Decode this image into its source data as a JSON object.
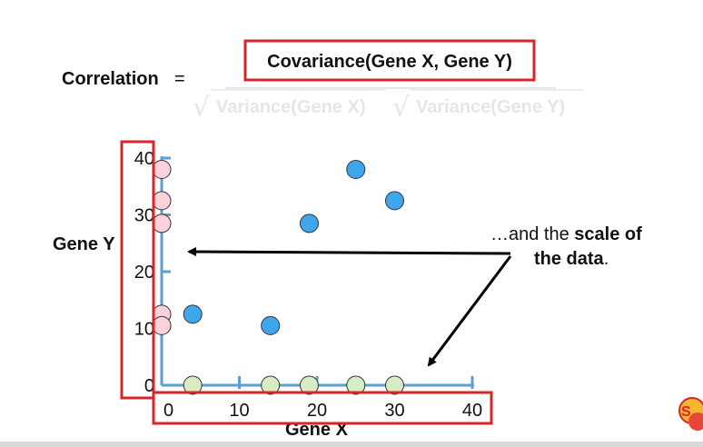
{
  "formula": {
    "lhs": "Correlation",
    "equals": "=",
    "numerator": "Covariance(Gene X, Gene Y)",
    "denominator_left": "Variance(Gene X)",
    "denominator_right": "Variance(Gene Y)",
    "sqrt_symbol": "√"
  },
  "annotation": {
    "prefix": "…and the ",
    "bold": "scale of",
    "line2_bold": "the data",
    "line2_end": "."
  },
  "colors": {
    "axis": "#5a9fd4",
    "highlight_box": "#d62728",
    "point_blue": "#3ea6ec",
    "point_pink": "#f9d2dc",
    "point_green": "#d8ecc4",
    "arrow": "#000000",
    "faded_text": "#e6e6e6"
  },
  "logo_icon": "statquest-logo-icon",
  "chart_data": {
    "type": "scatter",
    "xlabel": "Gene X",
    "ylabel": "Gene Y",
    "xlim": [
      0,
      40
    ],
    "ylim": [
      0,
      40
    ],
    "x_ticks": [
      0,
      10,
      20,
      30,
      40
    ],
    "y_ticks": [
      0,
      10,
      20,
      30,
      40
    ],
    "grid": false,
    "series": [
      {
        "role": "data",
        "color": "#3ea6ec",
        "points": [
          [
            4,
            12.5
          ],
          [
            14,
            10.5
          ],
          [
            19,
            28.5
          ],
          [
            25,
            38
          ],
          [
            30,
            32.5
          ]
        ]
      },
      {
        "role": "y-projection",
        "color": "#f9d2dc",
        "points": [
          [
            0,
            12.5
          ],
          [
            0,
            10.5
          ],
          [
            0,
            28.5
          ],
          [
            0,
            38
          ],
          [
            0,
            32.5
          ]
        ]
      },
      {
        "role": "x-projection",
        "color": "#d8ecc4",
        "points": [
          [
            4,
            0
          ],
          [
            14,
            0
          ],
          [
            19,
            0
          ],
          [
            25,
            0
          ],
          [
            30,
            0
          ]
        ]
      }
    ]
  }
}
